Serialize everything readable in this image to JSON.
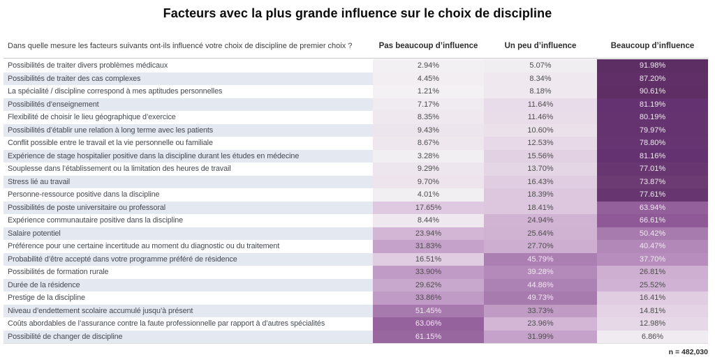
{
  "title": "Facteurs avec la plus grande influence sur le choix de discipline",
  "question": "Dans quelle mesure les facteurs suivants ont-ils influencé votre choix de discipline de premier choix ?",
  "footnote": "n = 482,030",
  "colors": {
    "band_even": "#ffffff",
    "band_odd": "#e4e8f1",
    "label_text": "#45494f",
    "cell_text_dark": "#4c4c4c",
    "cell_text_light": "#f1e9f1",
    "header_text": "#2d2d2d",
    "title_text": "#0b0b0b",
    "divider": "#c9c9c9",
    "heat_min": "#f4f2f4",
    "heat_max": "#5a2c5e"
  },
  "text_light_threshold": 36,
  "heatmap_stops": [
    [
      0,
      [
        244,
        242,
        244
      ]
    ],
    [
      6,
      [
        241,
        237,
        241
      ]
    ],
    [
      9,
      [
        238,
        231,
        238
      ]
    ],
    [
      12,
      [
        232,
        219,
        233
      ]
    ],
    [
      17,
      [
        224,
        203,
        225
      ]
    ],
    [
      24,
      [
        211,
        182,
        214
      ]
    ],
    [
      32,
      [
        197,
        162,
        201
      ]
    ],
    [
      38,
      [
        181,
        140,
        188
      ]
    ],
    [
      46,
      [
        171,
        127,
        178
      ]
    ],
    [
      52,
      [
        166,
        121,
        173
      ]
    ],
    [
      62,
      [
        152,
        101,
        159
      ]
    ],
    [
      67,
      [
        142,
        88,
        150
      ]
    ],
    [
      74,
      [
        107,
        58,
        114
      ]
    ],
    [
      81,
      [
        100,
        50,
        112
      ]
    ],
    [
      88,
      [
        95,
        47,
        103
      ]
    ],
    [
      100,
      [
        90,
        44,
        94
      ]
    ]
  ],
  "chart_data": {
    "type": "heatmap",
    "title": "Facteurs avec la plus grande influence sur le choix de discipline",
    "subtitle": "Dans quelle mesure les facteurs suivants ont-ils influencé votre choix de discipline de premier choix ?",
    "value_format": "percent_2dp",
    "legend": "none",
    "grid": false,
    "annotation": "n = 482,030",
    "categories": [
      "Possibilités de traiter divers problèmes médicaux",
      "Possibilités de traiter des cas complexes",
      "La spécialité / discipline correspond à mes aptitudes personnelles",
      "Possibilités d’enseignement",
      "Flexibilité de choisir le lieu géographique d’exercice",
      "Possibilités d’établir une relation à long terme avec les patients",
      "Conflit possible entre le travail et la vie personnelle ou familiale",
      "Expérience de stage hospitalier positive dans la discipline durant les études en médecine",
      "Souplesse dans l’établissement ou la limitation des heures de travail",
      "Stress lié au travail",
      "Personne-ressource positive dans la discipline",
      "Possibilités de poste universitaire ou professoral",
      "Expérience communautaire positive dans la discipline",
      "Salaire potentiel",
      "Préférence pour une certaine incertitude au moment du diagnostic ou du traitement",
      "Probabilité d’être accepté dans votre programme préféré de résidence",
      "Possibilités de formation rurale",
      "Durée de la résidence",
      "Prestige de la discipline",
      "Niveau d’endettement scolaire accumulé jusqu’à présent",
      "Coûts abordables de l’assurance contre la faute professionnelle par rapport à d’autres spécialités",
      "Possibilité de changer de discipline"
    ],
    "series": [
      {
        "name": "Pas beaucoup d’influence",
        "values": [
          2.94,
          4.45,
          1.21,
          7.17,
          8.35,
          9.43,
          8.67,
          3.28,
          9.29,
          9.7,
          4.01,
          17.65,
          8.44,
          23.94,
          31.83,
          16.51,
          33.9,
          29.62,
          33.86,
          51.45,
          63.06,
          61.15
        ]
      },
      {
        "name": "Un peu d’influence",
        "values": [
          5.07,
          8.34,
          8.18,
          11.64,
          11.46,
          10.6,
          12.53,
          15.56,
          13.7,
          16.43,
          18.39,
          18.41,
          24.94,
          25.64,
          27.7,
          45.79,
          39.28,
          44.86,
          49.73,
          33.73,
          23.96,
          31.99
        ]
      },
      {
        "name": "Beaucoup d’influence",
        "values": [
          91.98,
          87.2,
          90.61,
          81.19,
          80.19,
          79.97,
          78.8,
          81.16,
          77.01,
          73.87,
          77.61,
          63.94,
          66.61,
          50.42,
          40.47,
          37.7,
          26.81,
          25.52,
          16.41,
          14.81,
          12.98,
          6.86
        ]
      }
    ]
  }
}
